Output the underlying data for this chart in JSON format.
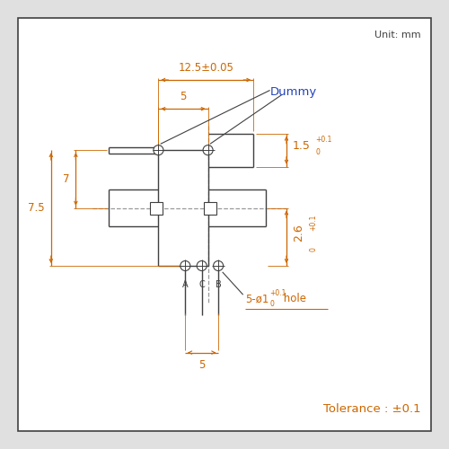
{
  "bg_color": "#e0e0e0",
  "box_color": "#ffffff",
  "line_color": "#404040",
  "dim_color": "#cc6600",
  "dummy_color": "#2244bb",
  "unit_text": "Unit: mm",
  "tolerance_text": "Tolerance : ±0.1",
  "dim_125": "12.5±0.05",
  "dim_5_top": "5",
  "dim_7": "7",
  "dim_75": "7.5",
  "dim_15": "1.5",
  "dim_26": "2.6",
  "dim_5_bot": "5",
  "label_dummy": "Dummy",
  "tol_super_pos": "+0.1",
  "tol_sub_zero": "0",
  "label_hole_prefix": "5-ø1",
  "label_hole_suffix": " hole"
}
